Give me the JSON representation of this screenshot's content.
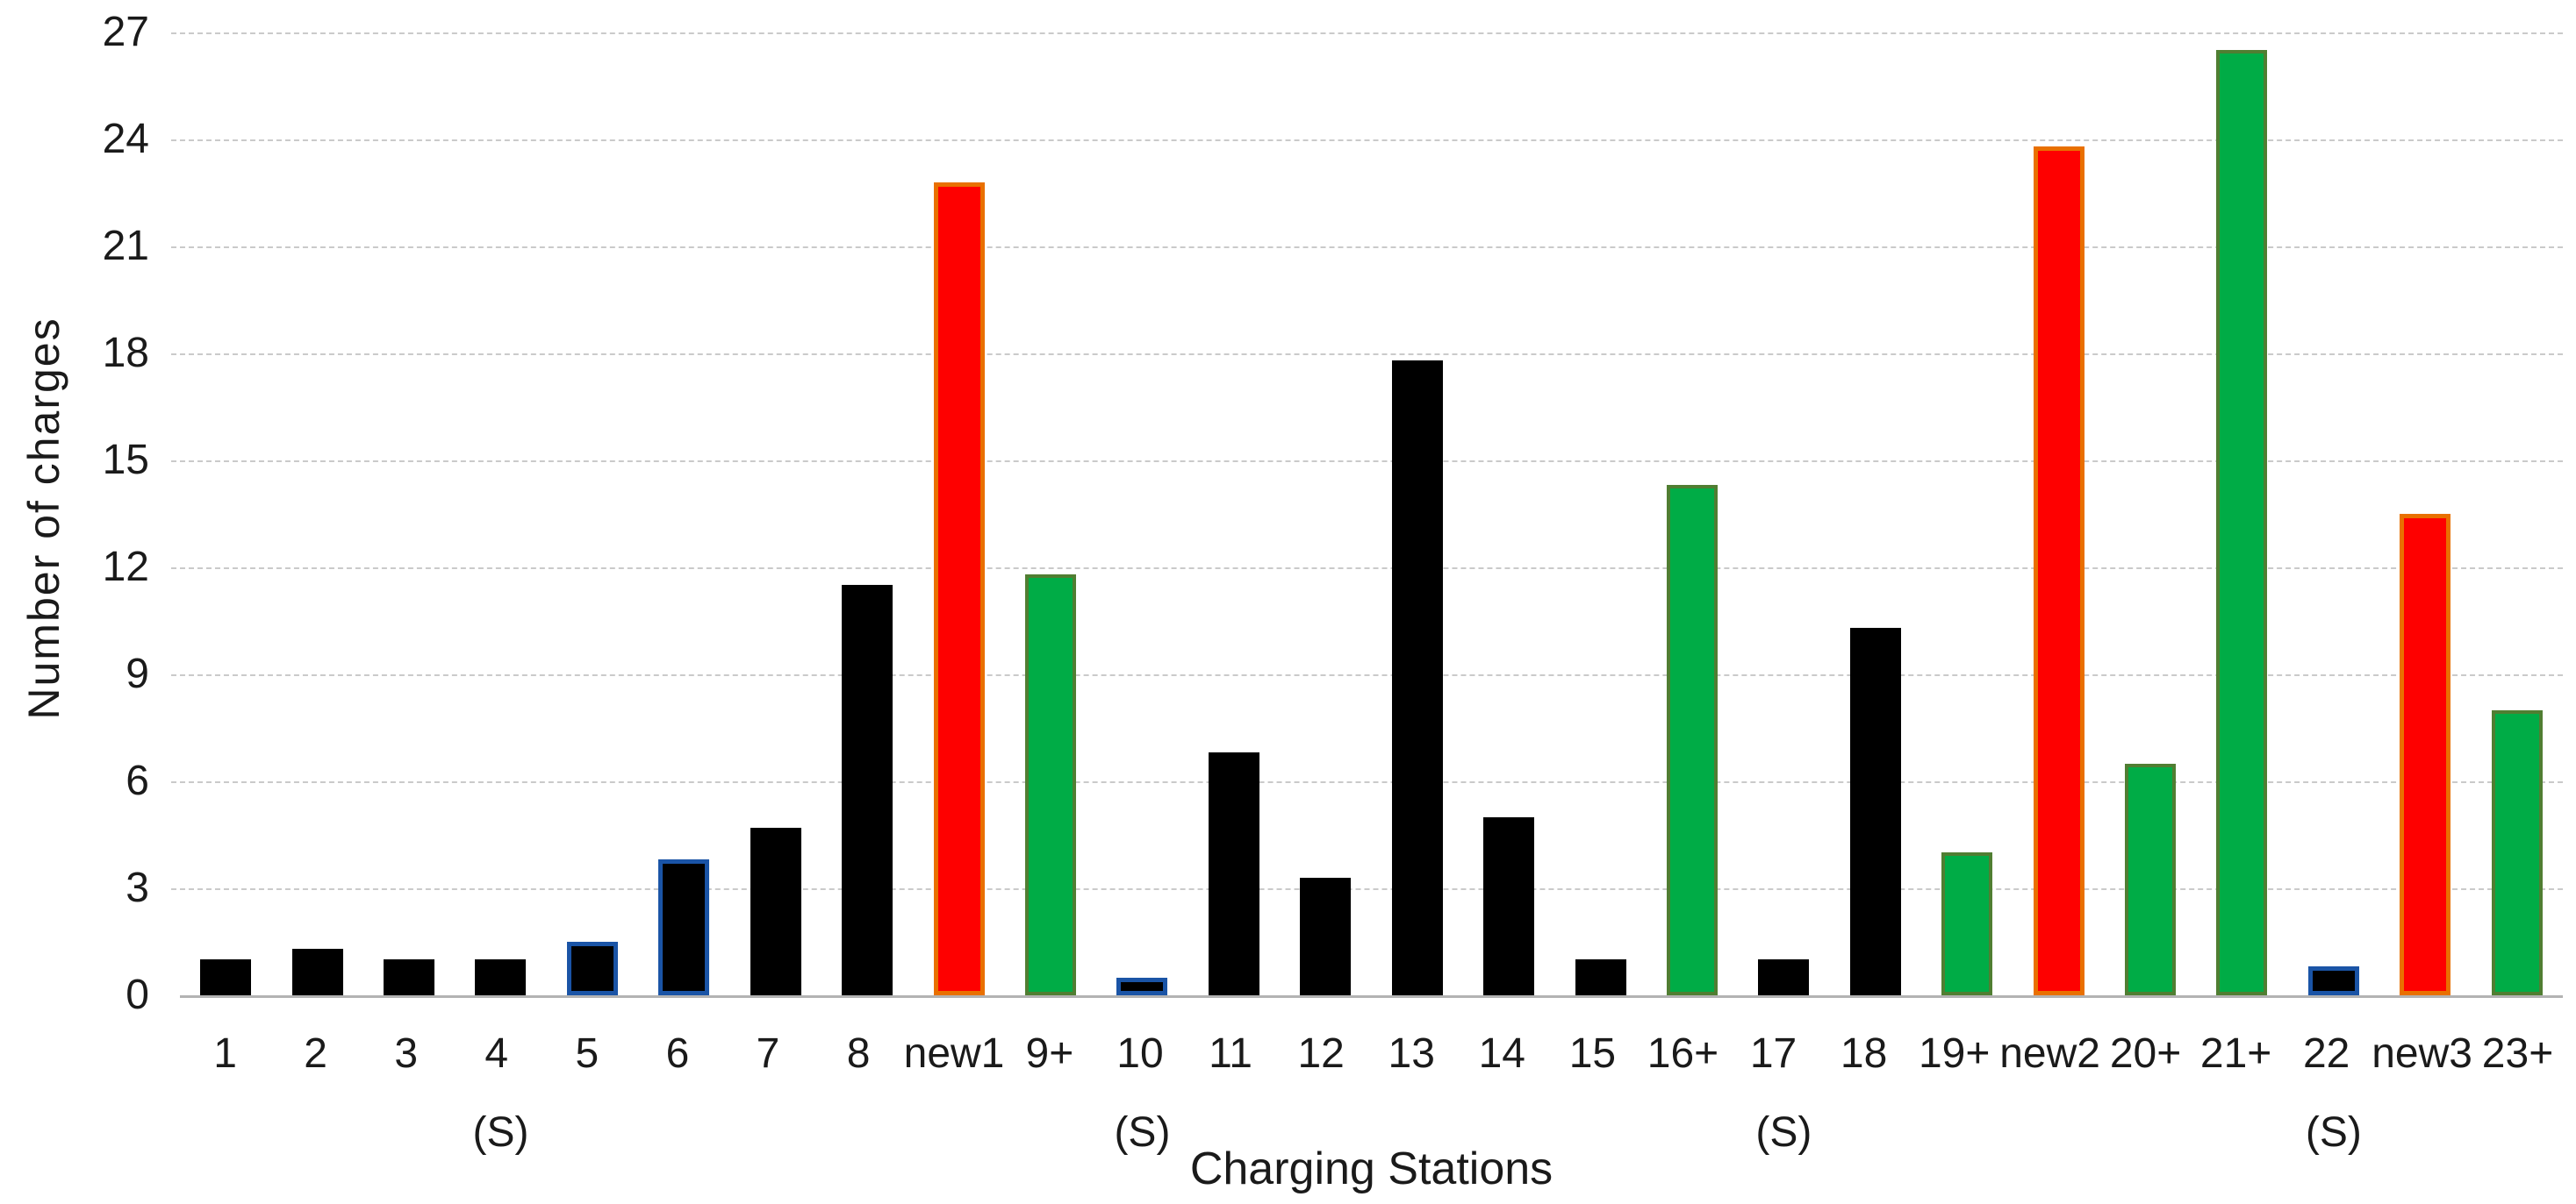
{
  "chart_data": {
    "type": "bar",
    "title": "",
    "xlabel": "Charging Stations",
    "ylabel": "Number of charges",
    "ylim": [
      0,
      27
    ],
    "yticks": [
      0,
      3,
      6,
      9,
      12,
      15,
      18,
      21,
      24,
      27
    ],
    "grid": "horizontal-dashed",
    "legend_position": "none",
    "bars": [
      {
        "label": "1",
        "sublabel": "",
        "value": 1.0,
        "style": "black"
      },
      {
        "label": "2",
        "sublabel": "",
        "value": 1.3,
        "style": "black"
      },
      {
        "label": "3",
        "sublabel": "",
        "value": 1.0,
        "style": "black"
      },
      {
        "label": "4",
        "sublabel": "(S)",
        "value": 1.0,
        "style": "black"
      },
      {
        "label": "5",
        "sublabel": "",
        "value": 1.5,
        "style": "blue-outline"
      },
      {
        "label": "6",
        "sublabel": "",
        "value": 3.8,
        "style": "blue-outline"
      },
      {
        "label": "7",
        "sublabel": "",
        "value": 4.7,
        "style": "black"
      },
      {
        "label": "8",
        "sublabel": "",
        "value": 11.5,
        "style": "black"
      },
      {
        "label": "new1",
        "sublabel": "",
        "value": 22.8,
        "style": "red"
      },
      {
        "label": "9+",
        "sublabel": "",
        "value": 11.8,
        "style": "green"
      },
      {
        "label": "10",
        "sublabel": "(S)",
        "value": 0.5,
        "style": "blue-outline"
      },
      {
        "label": "11",
        "sublabel": "",
        "value": 6.8,
        "style": "black"
      },
      {
        "label": "12",
        "sublabel": "",
        "value": 3.3,
        "style": "black"
      },
      {
        "label": "13",
        "sublabel": "",
        "value": 17.8,
        "style": "black"
      },
      {
        "label": "14",
        "sublabel": "",
        "value": 5.0,
        "style": "black"
      },
      {
        "label": "15",
        "sublabel": "",
        "value": 1.0,
        "style": "black"
      },
      {
        "label": "16+",
        "sublabel": "",
        "value": 14.3,
        "style": "green"
      },
      {
        "label": "17",
        "sublabel": "(S)",
        "value": 1.0,
        "style": "black"
      },
      {
        "label": "18",
        "sublabel": "",
        "value": 10.3,
        "style": "black"
      },
      {
        "label": "19+",
        "sublabel": "",
        "value": 4.0,
        "style": "green"
      },
      {
        "label": "new2",
        "sublabel": "",
        "value": 23.8,
        "style": "red"
      },
      {
        "label": "20+",
        "sublabel": "",
        "value": 6.5,
        "style": "green"
      },
      {
        "label": "21+",
        "sublabel": "",
        "value": 26.5,
        "style": "green"
      },
      {
        "label": "22",
        "sublabel": "(S)",
        "value": 0.8,
        "style": "blue-outline"
      },
      {
        "label": "new3",
        "sublabel": "",
        "value": 13.5,
        "style": "red"
      },
      {
        "label": "23+",
        "sublabel": "",
        "value": 8.0,
        "style": "green"
      }
    ],
    "styles": {
      "black": {
        "fill": "#000000",
        "border": "#000000",
        "border_px": 0
      },
      "blue-outline": {
        "fill": "#000000",
        "border": "#1a54a6",
        "border_px": 5
      },
      "red": {
        "fill": "#fe0000",
        "border": "#e97000",
        "border_px": 5
      },
      "green": {
        "fill": "#00ac46",
        "border": "#507e32",
        "border_px": 4
      }
    },
    "colors": {
      "gridline": "#cacaca",
      "baseline": "#b3b3b3",
      "text": "#1a1a1a",
      "background": "#ffffff"
    }
  }
}
